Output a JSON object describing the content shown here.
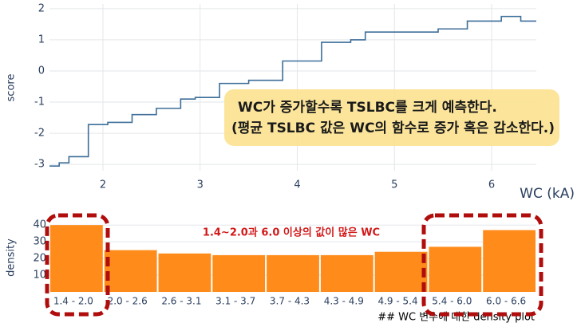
{
  "chart_data": [
    {
      "type": "step",
      "y_label": "score",
      "x_label": "WC (kA)",
      "color": "#3d6e99",
      "x": [
        1.45,
        1.55,
        1.65,
        1.85,
        2.05,
        2.3,
        2.55,
        2.8,
        2.95,
        3.2,
        3.5,
        3.85,
        4.25,
        4.55,
        4.7,
        5.45,
        5.75,
        6.1,
        6.3,
        6.46
      ],
      "values": [
        -3.05,
        -2.95,
        -2.75,
        -1.72,
        -1.65,
        -1.4,
        -1.2,
        -0.9,
        -0.85,
        -0.4,
        -0.3,
        0.32,
        0.92,
        1.0,
        1.25,
        1.35,
        1.6,
        1.75,
        1.6,
        1.6
      ],
      "xlim": [
        1.45,
        6.46
      ],
      "xticks": [
        2,
        3,
        4,
        5,
        6
      ],
      "ylim": [
        -3.2,
        2.15
      ],
      "yticks": [
        -3,
        -2,
        -1,
        0,
        1,
        2
      ],
      "grid": true,
      "annotation": [
        "WC가 증가할수록 TSLBC를 크게 예측한다.",
        "(평균 TSLBC 값은 WC의 함수로 증가 혹은 감소한다.)"
      ]
    },
    {
      "type": "bar",
      "y_label": "density",
      "color": "#ff8c1a",
      "categories": [
        "1.4 - 2.0",
        "2.0 - 2.6",
        "2.6 - 3.1",
        "3.1 - 3.7",
        "3.7 - 4.3",
        "4.3 - 4.9",
        "4.9 - 5.4",
        "5.4 - 6.0",
        "6.0 - 6.6"
      ],
      "values": [
        40,
        25,
        23,
        22,
        22,
        22,
        24,
        27,
        37
      ],
      "ylim": [
        0,
        42
      ],
      "yticks": [
        10,
        20,
        30,
        40
      ],
      "annotation": "1.4~2.0과 6.0 이상의 값이 많은 WC",
      "caption": "## WC 변수에 대한  density plot"
    }
  ]
}
